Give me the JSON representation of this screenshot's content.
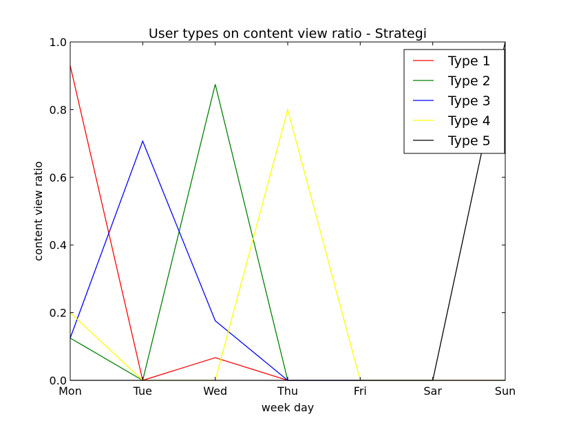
{
  "chart_data": {
    "type": "line",
    "title": "User types on content view ratio - Strategi",
    "xlabel": "week day",
    "ylabel": "content view ratio",
    "categories": [
      "Mon",
      "Tue",
      "Wed",
      "Thu",
      "Fri",
      "Sar",
      "Sun"
    ],
    "ylim": [
      0,
      1.0
    ],
    "yticks": [
      "0.0",
      "0.2",
      "0.4",
      "0.6",
      "0.8",
      "1.0"
    ],
    "grid": false,
    "legend_position": "top-right",
    "series": [
      {
        "name": "Type 1",
        "color": "#ff0000",
        "values": [
          0.93,
          0.0,
          0.067,
          0.0,
          0.0,
          0.0,
          0.0
        ]
      },
      {
        "name": "Type 2",
        "color": "#008000",
        "values": [
          0.125,
          0.0,
          0.875,
          0.0,
          0.0,
          0.0,
          0.0
        ]
      },
      {
        "name": "Type 3",
        "color": "#0000ff",
        "values": [
          0.125,
          0.707,
          0.176,
          0.0,
          0.0,
          0.0,
          0.0
        ]
      },
      {
        "name": "Type 4",
        "color": "#ffff00",
        "values": [
          0.2,
          0.0,
          0.0,
          0.8,
          0.0,
          0.0,
          0.0
        ]
      },
      {
        "name": "Type 5",
        "color": "#000000",
        "values": [
          0.0,
          0.0,
          0.0,
          0.0,
          0.0,
          0.0,
          1.0
        ]
      }
    ]
  }
}
